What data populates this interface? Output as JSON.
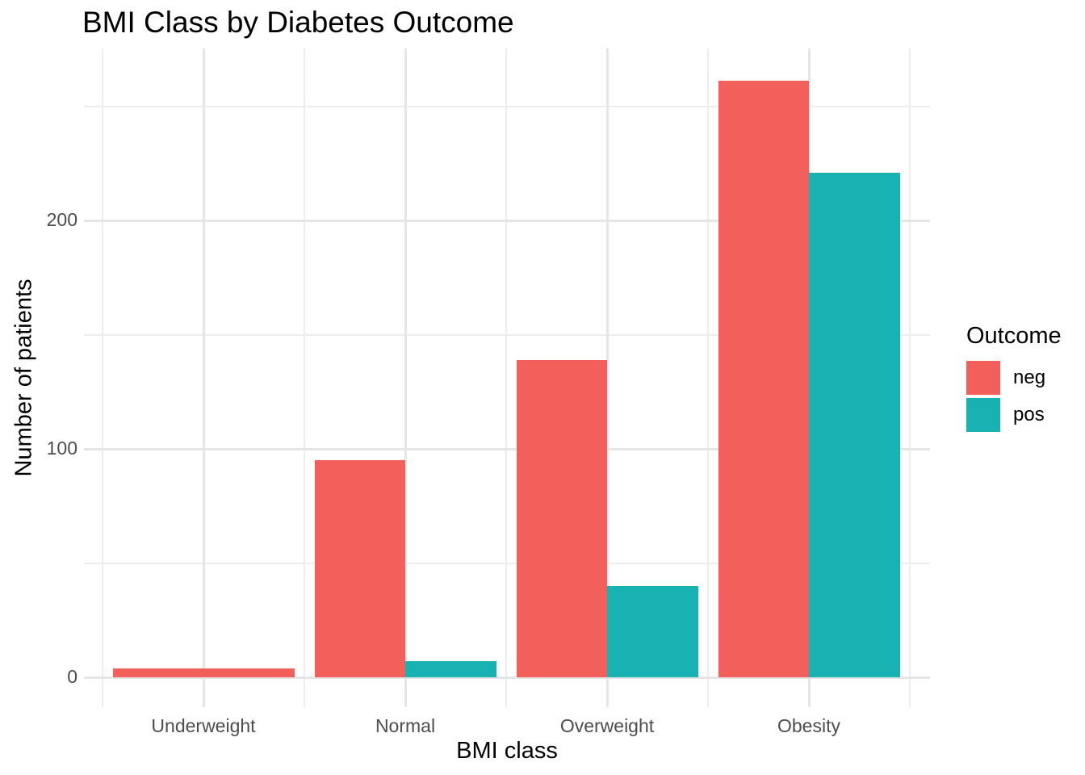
{
  "chart_data": {
    "type": "bar",
    "title": "BMI Class by Diabetes Outcome",
    "xlabel": "BMI class",
    "ylabel": "Number of patients",
    "categories": [
      "Underweight",
      "Normal",
      "Overweight",
      "Obesity"
    ],
    "series": [
      {
        "name": "neg",
        "color": "#F3605C",
        "values": [
          4,
          95,
          139,
          261
        ]
      },
      {
        "name": "pos",
        "color": "#19B2B3",
        "values": [
          null,
          7,
          40,
          221
        ]
      }
    ],
    "ylim": [
      0,
      275
    ],
    "yticks": [
      0,
      100,
      200
    ],
    "yticks_minor": [
      50,
      150,
      250
    ],
    "grid": "major and minor horizontal+vertical light-gray gridlines on white (theme_minimal)",
    "bar_layout": "dodged; a lone bar fills the whole group width when the other outcome is absent",
    "legend": {
      "title": "Outcome",
      "position": "right"
    }
  },
  "colors": {
    "neg": "#F3605C",
    "pos": "#19B2B3",
    "grid_major": "#E6E6E6",
    "grid_minor": "#EDEDED",
    "tick_label": "#4D4D4D",
    "text": "#000000",
    "background": "#FFFFFF"
  }
}
